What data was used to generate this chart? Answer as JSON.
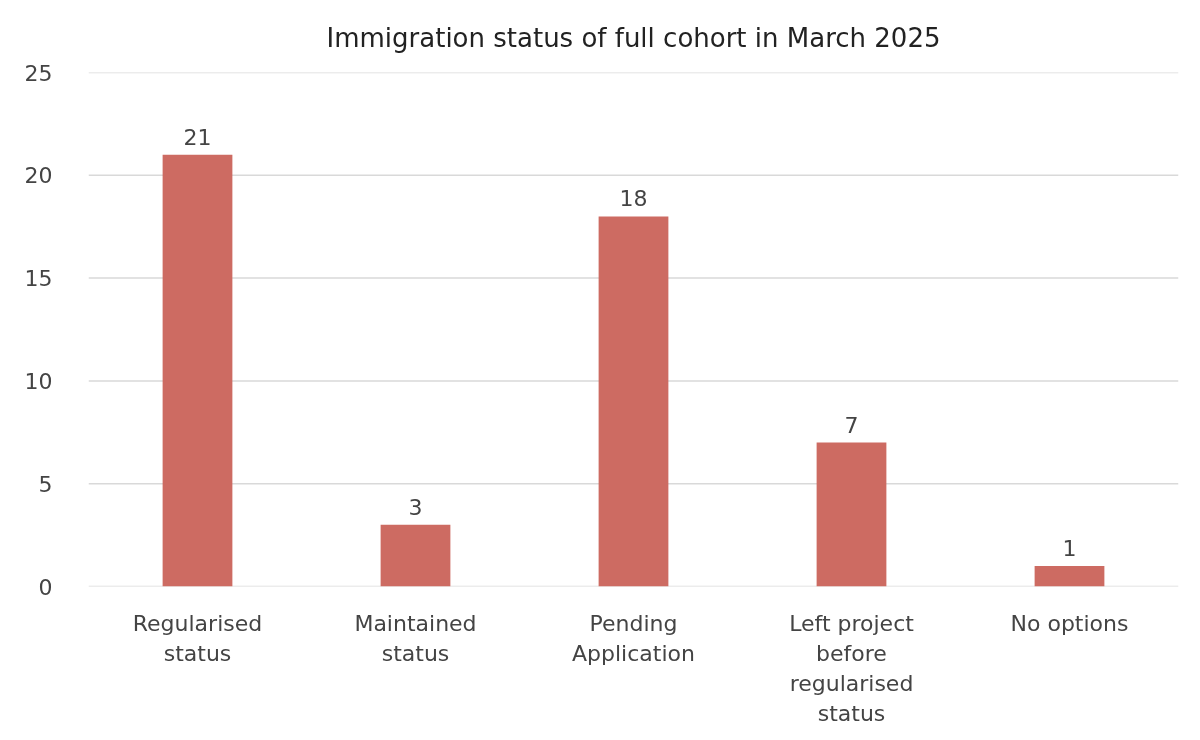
{
  "chart_data": {
    "type": "bar",
    "title": "Immigration status of full cohort in March 2025",
    "categories": [
      "Regularised status",
      "Maintained status",
      "Pending Application",
      "Left project before regularised status",
      "No options"
    ],
    "values": [
      21,
      3,
      18,
      7,
      1
    ],
    "color": "#cd6b62",
    "ylim": [
      0,
      25
    ],
    "yticks": [
      0,
      5,
      10,
      15,
      20,
      25
    ],
    "grid": "y",
    "data_labels": true
  }
}
